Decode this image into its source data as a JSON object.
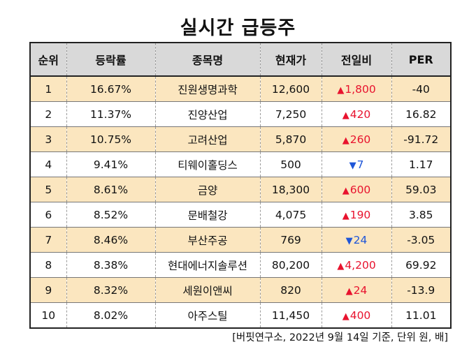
{
  "title": "실시간 급등주",
  "headers": [
    "순위",
    "등락률",
    "종목명",
    "현재가",
    "전일비",
    "PER"
  ],
  "rows": [
    {
      "rank": "1",
      "rate": "16.67%",
      "name": "진원생명과학",
      "price": "12,600",
      "dir": "up",
      "arrow": "▲",
      "change": "1,800",
      "per": "-40"
    },
    {
      "rank": "2",
      "rate": "11.37%",
      "name": "진양산업",
      "price": "7,250",
      "dir": "up",
      "arrow": "▲",
      "change": "420",
      "per": "16.82"
    },
    {
      "rank": "3",
      "rate": "10.75%",
      "name": "고려산업",
      "price": "5,870",
      "dir": "up",
      "arrow": "▲",
      "change": "260",
      "per": "-91.72"
    },
    {
      "rank": "4",
      "rate": "9.41%",
      "name": "티웨이홀딩스",
      "price": "500",
      "dir": "down",
      "arrow": "▼",
      "change": "7",
      "per": "1.17"
    },
    {
      "rank": "5",
      "rate": "8.61%",
      "name": "금양",
      "price": "18,300",
      "dir": "up",
      "arrow": "▲",
      "change": "600",
      "per": "59.03"
    },
    {
      "rank": "6",
      "rate": "8.52%",
      "name": "문배철강",
      "price": "4,075",
      "dir": "up",
      "arrow": "▲",
      "change": "190",
      "per": "3.85"
    },
    {
      "rank": "7",
      "rate": "8.46%",
      "name": "부산주공",
      "price": "769",
      "dir": "down",
      "arrow": "▼",
      "change": "24",
      "per": "-3.05"
    },
    {
      "rank": "8",
      "rate": "8.38%",
      "name": "현대에너지솔루션",
      "price": "80,200",
      "dir": "up",
      "arrow": "▲",
      "change": "4,200",
      "per": "69.92"
    },
    {
      "rank": "9",
      "rate": "8.32%",
      "name": "세원이앤씨",
      "price": "820",
      "dir": "up",
      "arrow": "▲",
      "change": "24",
      "per": "-13.9"
    },
    {
      "rank": "10",
      "rate": "8.02%",
      "name": "아주스틸",
      "price": "11,450",
      "dir": "up",
      "arrow": "▲",
      "change": "400",
      "per": "11.01"
    }
  ],
  "colors": {
    "up": "#e8132e",
    "down": "#1f56d8",
    "shaded_row": "#fbe6bf",
    "header_bg": "#d9d9d9"
  },
  "source": "[버핏연구소, 2022년 9월 14일 기준, 단위 원, 배]"
}
